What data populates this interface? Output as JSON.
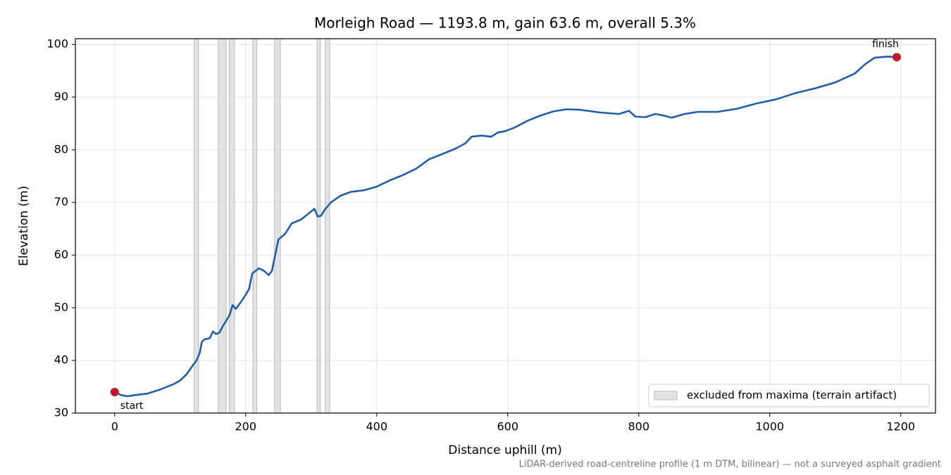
{
  "chart_data": {
    "type": "line",
    "title": "Morleigh Road — 1193.8 m, gain 63.6 m, overall 5.3%",
    "x_label": "Distance uphill (m)",
    "y_label": "Elevation (m)",
    "footnote": "LiDAR-derived road-centreline profile (1 m DTM, bilinear) — not a surveyed asphalt gradient",
    "xlim": [
      -60,
      1253
    ],
    "ylim": [
      30,
      101.1
    ],
    "xticks": [
      0,
      200,
      400,
      600,
      800,
      1000,
      1200
    ],
    "yticks": [
      30,
      40,
      50,
      60,
      70,
      80,
      90,
      100
    ],
    "grid": true,
    "legend_position": "lower right",
    "series": [
      {
        "name": "elevation",
        "color": "#1f5fad",
        "x": [
          0,
          10,
          20,
          30,
          50,
          70,
          90,
          100,
          110,
          120,
          125,
          130,
          133,
          137,
          145,
          150,
          155,
          160,
          165,
          170,
          175,
          180,
          185,
          195,
          205,
          210,
          220,
          228,
          235,
          240,
          245,
          250,
          260,
          270,
          285,
          295,
          305,
          310,
          315,
          320,
          330,
          345,
          360,
          380,
          400,
          420,
          440,
          460,
          480,
          500,
          520,
          535,
          545,
          560,
          575,
          585,
          595,
          610,
          630,
          650,
          670,
          690,
          710,
          740,
          770,
          785,
          795,
          810,
          825,
          835,
          850,
          870,
          890,
          920,
          950,
          980,
          1010,
          1040,
          1070,
          1100,
          1130,
          1145,
          1160,
          1170,
          1180,
          1193.8
        ],
        "values": [
          34,
          33.4,
          33.2,
          33.4,
          33.7,
          34.5,
          35.5,
          36.2,
          37.4,
          39.2,
          40,
          41.5,
          43.5,
          44,
          44.2,
          45.5,
          45,
          45.3,
          46.5,
          47.5,
          48.5,
          50.5,
          49.8,
          51.5,
          53.5,
          56.5,
          57.5,
          57,
          56.2,
          57,
          60,
          63,
          64,
          66,
          66.8,
          67.8,
          68.8,
          67.3,
          67.5,
          68.5,
          70,
          71.3,
          72,
          72.3,
          73,
          74.2,
          75.2,
          76.4,
          78.2,
          79.2,
          80.2,
          81.2,
          82.5,
          82.7,
          82.5,
          83.3,
          83.5,
          84.2,
          85.5,
          86.5,
          87.3,
          87.7,
          87.6,
          87.1,
          86.8,
          87.4,
          86.3,
          86.2,
          86.8,
          86.6,
          86.1,
          86.8,
          87.2,
          87.2,
          87.8,
          88.8,
          89.6,
          90.8,
          91.7,
          92.8,
          94.5,
          96.2,
          97.5,
          97.6,
          97.7,
          97.6
        ]
      }
    ],
    "excluded": {
      "name": "excluded from maxima (terrain artifact)",
      "color": "#d9d9d9",
      "ranges": [
        [
          121.5,
          128
        ],
        [
          158,
          170
        ],
        [
          175,
          183
        ],
        [
          211,
          217
        ],
        [
          244,
          253
        ],
        [
          309,
          314
        ],
        [
          321.5,
          328
        ]
      ]
    },
    "markers": [
      {
        "label": "start",
        "x": 0,
        "y": 34,
        "color": "#c0192a"
      },
      {
        "label": "finish",
        "x": 1193.8,
        "y": 97.6,
        "color": "#c0192a"
      }
    ]
  }
}
